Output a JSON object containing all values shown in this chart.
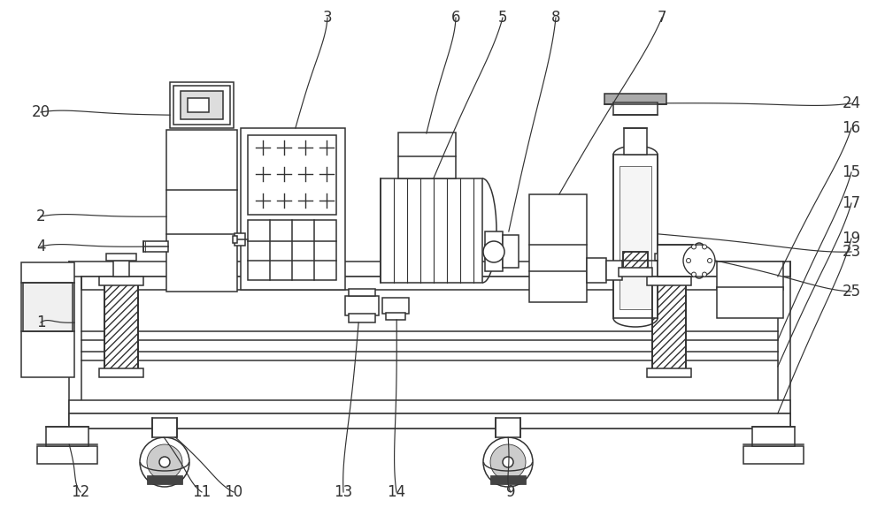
{
  "bg_color": "#ffffff",
  "line_color": "#333333",
  "figsize": [
    10.0,
    5.75
  ],
  "dpi": 100,
  "lw": 1.1
}
